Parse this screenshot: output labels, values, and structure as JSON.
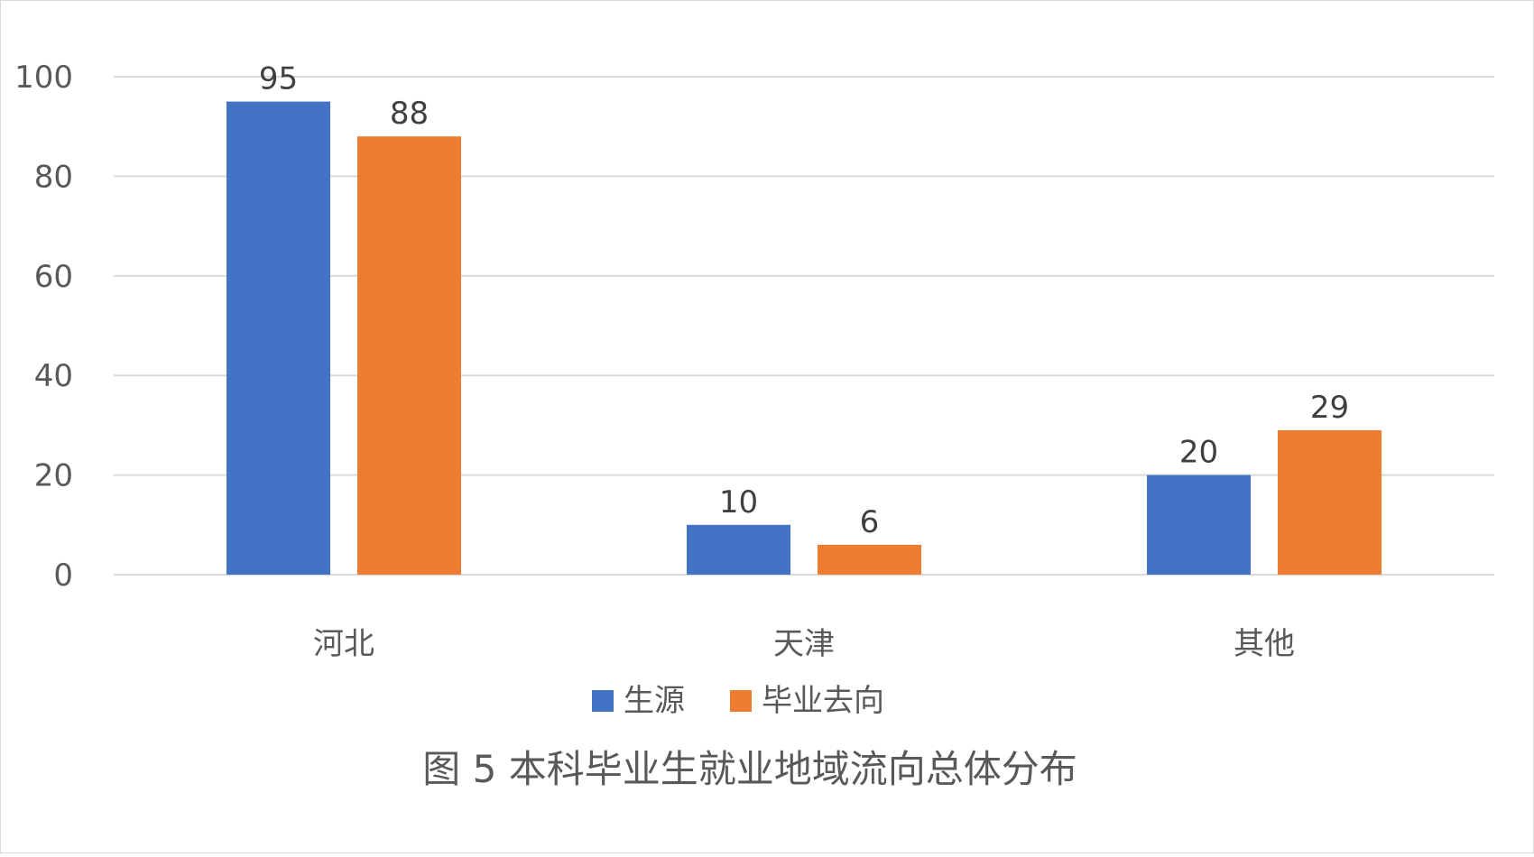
{
  "chart_data": {
    "type": "bar",
    "title": "图 5  本科毕业生就业地域流向总体分布",
    "xlabel": "",
    "ylabel": "",
    "categories": [
      "河北",
      "天津",
      "其他"
    ],
    "series": [
      {
        "name": "生源",
        "values": [
          95,
          10,
          20
        ],
        "color": "#4472C4"
      },
      {
        "name": "毕业去向",
        "values": [
          88,
          6,
          29
        ],
        "color": "#ED7D31"
      }
    ],
    "ylim": [
      0,
      100
    ],
    "yticks": [
      0,
      20,
      40,
      60,
      80,
      100
    ],
    "grid": true,
    "legend_position": "bottom",
    "data_labels": true
  }
}
